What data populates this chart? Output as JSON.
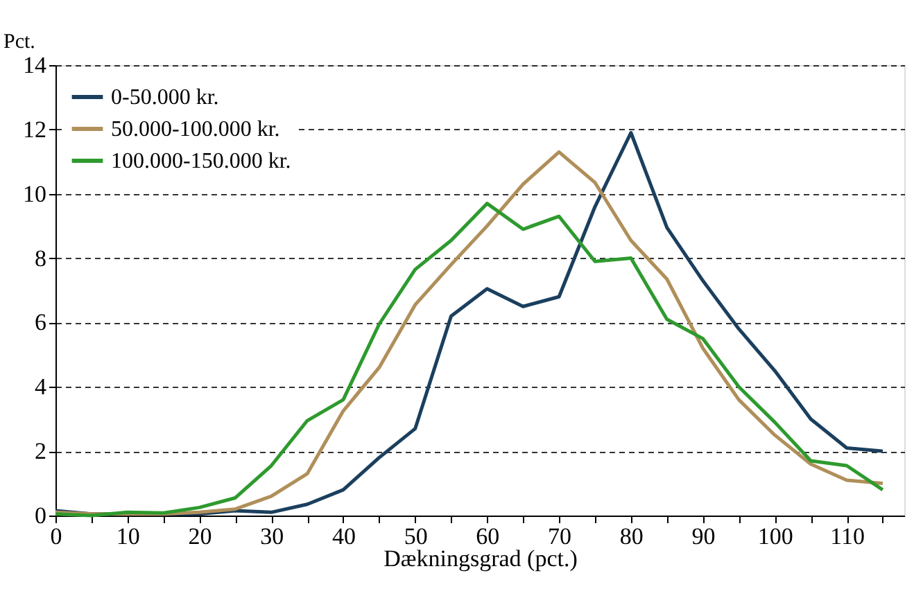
{
  "chart_data": {
    "type": "line",
    "ylabel": "Pct.",
    "xlabel": "Dækningsgrad (pct.)",
    "x": [
      0,
      5,
      10,
      15,
      20,
      25,
      30,
      35,
      40,
      45,
      50,
      55,
      60,
      65,
      70,
      75,
      80,
      85,
      90,
      95,
      100,
      105,
      110,
      115
    ],
    "series": [
      {
        "name": "0-50.000 kr.",
        "color": "#1b3f5e",
        "values": [
          0.15,
          0.05,
          0.05,
          0.05,
          0.05,
          0.15,
          0.1,
          0.35,
          0.8,
          1.8,
          2.7,
          6.2,
          7.05,
          6.5,
          6.8,
          9.6,
          11.9,
          8.95,
          7.3,
          5.8,
          4.5,
          3.0,
          2.1,
          2.0
        ]
      },
      {
        "name": "50.000-100.000 kr.",
        "color": "#b08f5a",
        "values": [
          0.1,
          0.05,
          0.05,
          0.05,
          0.1,
          0.2,
          0.6,
          1.3,
          3.25,
          4.6,
          6.55,
          7.8,
          9.0,
          10.3,
          11.3,
          10.35,
          8.55,
          7.35,
          5.2,
          3.6,
          2.5,
          1.6,
          1.1,
          1.0
        ]
      },
      {
        "name": "100.000-150.000 kr.",
        "color": "#2e9a2e",
        "values": [
          0.05,
          0.0,
          0.1,
          0.08,
          0.25,
          0.55,
          1.55,
          2.95,
          3.6,
          5.95,
          7.65,
          8.55,
          9.7,
          8.9,
          9.3,
          7.9,
          8.0,
          6.1,
          5.5,
          4.0,
          2.9,
          1.7,
          1.55,
          0.8
        ]
      }
    ],
    "xlim": [
      0,
      118
    ],
    "xticks": [
      0,
      {
        "value": 5,
        "label": null
      },
      10,
      {
        "value": 15,
        "label": null
      },
      20,
      {
        "value": 25,
        "label": null
      },
      30,
      {
        "value": 35,
        "label": null
      },
      40,
      {
        "value": 45,
        "label": null
      },
      50,
      {
        "value": 55,
        "label": null
      },
      60,
      {
        "value": 65,
        "label": null
      },
      70,
      {
        "value": 75,
        "label": null
      },
      80,
      {
        "value": 85,
        "label": null
      },
      90,
      {
        "value": 95,
        "label": null
      },
      100,
      {
        "value": 105,
        "label": null
      },
      110,
      {
        "value": 115,
        "label": null
      }
    ],
    "ylim": [
      0,
      14
    ],
    "yticks": [
      0,
      2,
      4,
      6,
      8,
      10,
      12,
      14
    ],
    "grid": "y",
    "legend": "top left",
    "line_style": "solid",
    "marker": "none"
  }
}
